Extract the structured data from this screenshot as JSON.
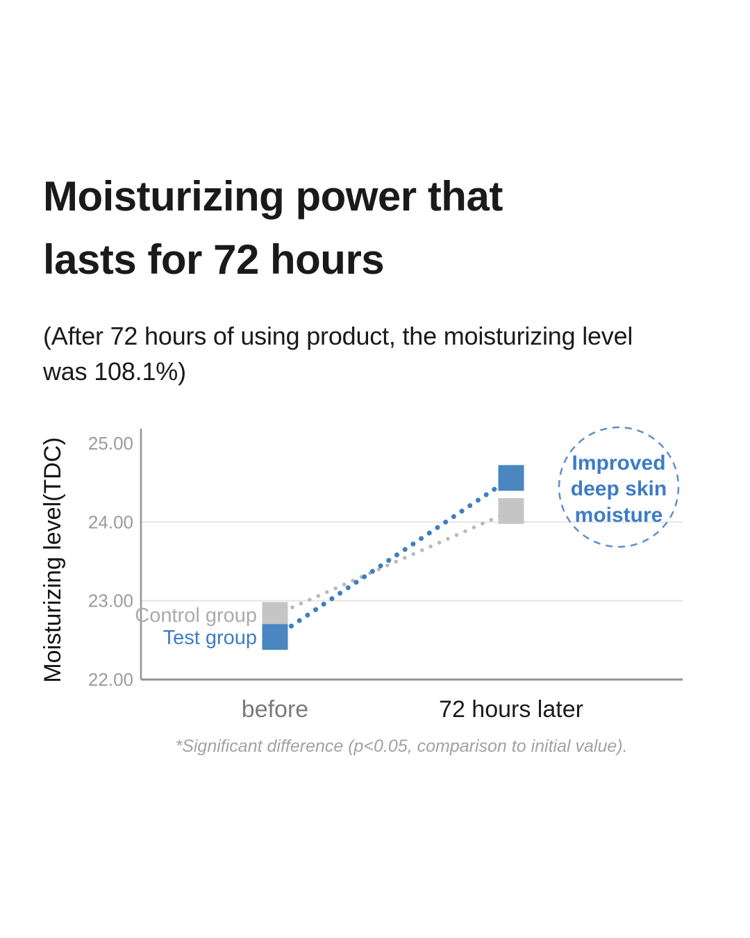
{
  "header": {
    "title_lines": [
      "Moisturizing power that",
      "lasts for 72 hours"
    ],
    "subtitle_lines": [
      "(After 72 hours of using product, the moisturizing level",
      "was 108.1%)"
    ]
  },
  "chart_data": {
    "type": "line",
    "title": "",
    "xlabel": "",
    "ylabel": "Moisturizing level(TDC)",
    "ylim": [
      22.0,
      25.0
    ],
    "yticks": [
      22.0,
      23.0,
      24.0,
      25.0
    ],
    "ytick_labels": [
      "22.00",
      "23.00",
      "24.00",
      "25.00"
    ],
    "grid": "horizontal",
    "legend_position": "inline-left-of-first-points",
    "categories": [
      "before",
      "72 hours later"
    ],
    "series": [
      {
        "name": "Control group",
        "values": [
          22.82,
          24.14
        ],
        "marker": "square",
        "line_style": "dotted",
        "color": "#c5c5c6",
        "dot_color": "#b9babc",
        "label_color": "#ababab"
      },
      {
        "name": "Test group",
        "values": [
          22.54,
          24.56
        ],
        "marker": "square",
        "line_style": "dotted",
        "color": "#4a86bf",
        "dot_color": "#3e7fc2",
        "label_color": "#3d7cc5"
      }
    ],
    "annotation": {
      "shape": "dashed-circle",
      "lines": [
        "Improved",
        "deep skin",
        "moisture"
      ],
      "color": "#3d7cc5",
      "border_color": "#5a8ed0"
    },
    "footnote": "*Significant difference (p<0.05, comparison to initial value)."
  },
  "colors": {
    "title_text": "#1a1a1a",
    "tick_text": "#9b9b9b",
    "gridline": "#e4e4e4",
    "axis_line": "#8f9194",
    "xlabel_before": "#7a7a7a",
    "xlabel_after": "#1a1a1a",
    "footnote_text": "#a2a2a2",
    "accent_blue": "#4a86bf",
    "neutral_gray": "#c5c5c6"
  }
}
